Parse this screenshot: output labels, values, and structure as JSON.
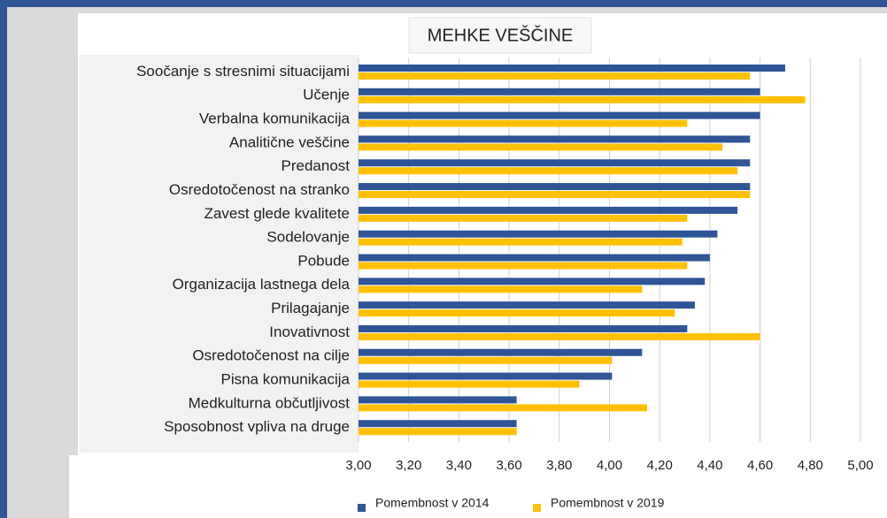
{
  "chart_data": {
    "type": "barh",
    "title": "MEHKE VEŠČINE",
    "categories": [
      "Soočanje s stresnimi situacijami",
      "Učenje",
      "Verbalna komunikacija",
      "Analitične veščine",
      "Predanost",
      "Osredotočenost na stranko",
      "Zavest glede kvalitete",
      "Sodelovanje",
      "Pobude",
      "Organizacija lastnega dela",
      "Prilagajanje",
      "Inovativnost",
      "Osredotočenost na cilje",
      "Pisna komunikacija",
      "Medkulturna občutljivost",
      "Sposobnost vpliva na druge"
    ],
    "series": [
      {
        "name": "Pomembnost v 2014",
        "color": "#2f5597",
        "values": [
          4.7,
          4.6,
          4.6,
          4.56,
          4.56,
          4.56,
          4.51,
          4.43,
          4.4,
          4.38,
          4.34,
          4.31,
          4.13,
          4.01,
          3.63,
          3.63
        ]
      },
      {
        "name": "Pomembnost v 2019",
        "color": "#ffc000",
        "values": [
          4.56,
          4.78,
          4.31,
          4.45,
          4.51,
          4.56,
          4.31,
          4.29,
          4.31,
          4.13,
          4.26,
          4.6,
          4.01,
          3.88,
          4.15,
          3.63
        ]
      }
    ],
    "xlim": [
      3,
      5
    ],
    "xticks": [
      {
        "value": 3,
        "label": "3,00"
      },
      {
        "value": 3.2,
        "label": "3,20"
      },
      {
        "value": 3.4,
        "label": "3,40"
      },
      {
        "value": 3.6,
        "label": "3,60"
      },
      {
        "value": 3.8,
        "label": "3,80"
      },
      {
        "value": 4,
        "label": "4,00"
      },
      {
        "value": 4.2,
        "label": "4,20"
      },
      {
        "value": 4.4,
        "label": "4,40"
      },
      {
        "value": 4.6,
        "label": "4,60"
      },
      {
        "value": 4.8,
        "label": "4,80"
      },
      {
        "value": 5,
        "label": "5,00"
      }
    ],
    "grid": true,
    "legend": "bottom"
  }
}
